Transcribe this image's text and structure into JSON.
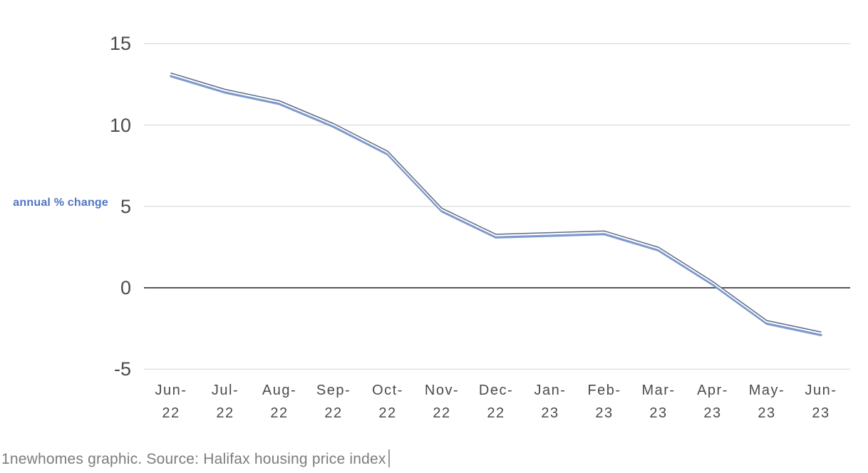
{
  "chart_data": {
    "type": "line",
    "title": "",
    "categories": [
      "Jun-22",
      "Jul-22",
      "Aug-22",
      "Sep-22",
      "Oct-22",
      "Nov-22",
      "Dec-22",
      "Jan-23",
      "Feb-23",
      "Mar-23",
      "Apr-23",
      "May-23",
      "Jun-23"
    ],
    "series": [
      {
        "name": "annual % change",
        "values": [
          13.0,
          12.0,
          11.3,
          9.9,
          8.2,
          4.7,
          3.1,
          3.2,
          3.3,
          2.3,
          0.2,
          -2.2,
          -2.9
        ]
      }
    ],
    "xlabel": "",
    "ylabel": "annual % change",
    "ylim": [
      -5,
      15
    ],
    "yticks": [
      15,
      10,
      5,
      0,
      -5
    ],
    "grid": true,
    "legend_position": "left-middle",
    "zero_line": true
  },
  "caption": {
    "text": "1newhomes graphic. Source: Halifax housing price index"
  },
  "colors": {
    "line": "#7c99cc",
    "line_top_edge": "#5e6d87",
    "line_gap": "#ffffff",
    "grid": "#d4d4d4",
    "zero_line": "#575757",
    "axis_label_text": "#4f74c5",
    "tick_text": "#4b4b4b",
    "caption_text": "#7c7c7c",
    "cursor": "#9a9a9a",
    "background": "#ffffff"
  }
}
